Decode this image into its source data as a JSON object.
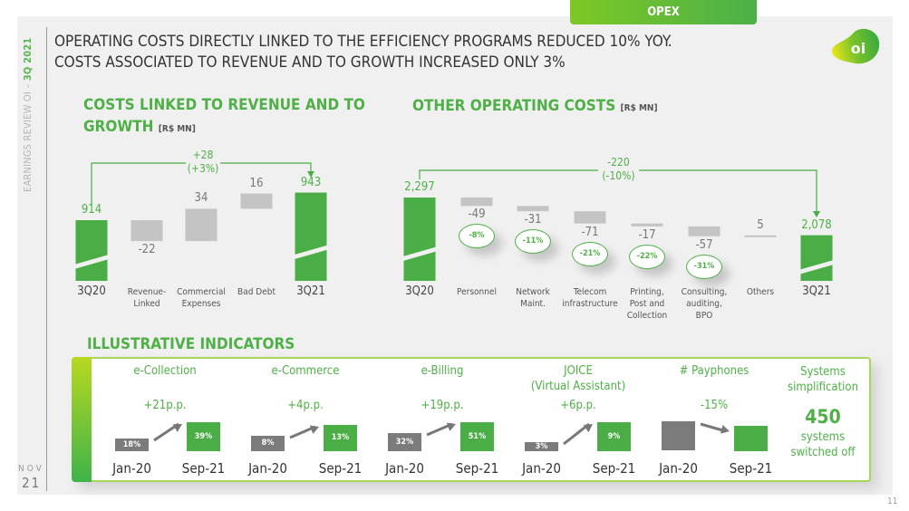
{
  "opex_tab": "OPEX",
  "sidebar": {
    "prefix": "EARNINGS REVIEW OI – ",
    "highlight": "3Q 2021",
    "month": "NOV",
    "year": "21"
  },
  "headline": [
    "OPERATING COSTS DIRECTLY LINKED TO THE EFFICIENCY PROGRAMS REDUCED 10% YOY.",
    "COSTS ASSOCIATED TO REVENUE AND TO GROWTH INCREASED ONLY 3%"
  ],
  "logo_text": "oi",
  "page_number": "11",
  "colors": {
    "green": "#4aad45",
    "gray_bar": "#c4c4c4",
    "dark_gray": "#7b7b7b"
  },
  "chart_data": [
    {
      "type": "bar",
      "subtype": "waterfall",
      "title_line1": "COSTS LINKED TO REVENUE AND TO",
      "title_line2": "GROWTH",
      "unit": "[R$ MN]",
      "categories": [
        "3Q20",
        "Revenue-Linked",
        "Commercial Expenses",
        "Bad Debt",
        "3Q21"
      ],
      "category_lines": [
        [
          "3Q20"
        ],
        [
          "Revenue-",
          "Linked"
        ],
        [
          "Commercial",
          "Expenses"
        ],
        [
          "Bad Debt"
        ],
        [
          "3Q21"
        ]
      ],
      "values": [
        914,
        -22,
        34,
        16,
        943
      ],
      "value_labels": [
        "914",
        "-22",
        "34",
        "16",
        "943"
      ],
      "kinds": [
        "total",
        "delta",
        "delta",
        "delta",
        "total"
      ],
      "change_label": [
        "+28",
        "(+3%)"
      ]
    },
    {
      "type": "bar",
      "subtype": "waterfall",
      "title": "OTHER OPERATING COSTS",
      "unit": "[R$ MN]",
      "categories": [
        "3Q20",
        "Personnel",
        "Network Maint.",
        "Telecom infrastructure",
        "Printing, Post and Collection",
        "Consulting, auditing, BPO",
        "Others",
        "3Q21"
      ],
      "category_lines": [
        [
          "3Q20"
        ],
        [
          "Personnel"
        ],
        [
          "Network",
          "Maint."
        ],
        [
          "Telecom",
          "infrastructure"
        ],
        [
          "Printing,",
          "Post and",
          "Collection"
        ],
        [
          "Consulting,",
          "auditing,",
          "BPO"
        ],
        [
          "Others"
        ],
        [
          "3Q21"
        ]
      ],
      "values": [
        2297,
        -49,
        -31,
        -71,
        -17,
        -57,
        5,
        2078
      ],
      "value_labels": [
        "2,297",
        "-49",
        "-31",
        "-71",
        "-17",
        "-57",
        "5",
        "2,078"
      ],
      "kinds": [
        "total",
        "delta",
        "delta",
        "delta",
        "delta",
        "delta",
        "delta",
        "total"
      ],
      "pct_change": [
        null,
        "-8%",
        "-11%",
        "-21%",
        "-22%",
        "-31%",
        null,
        null
      ],
      "change_label": [
        "-220",
        "(-10%)"
      ]
    },
    {
      "type": "bar",
      "title": "ILLUSTRATIVE INDICATORS",
      "groups": [
        {
          "title": [
            "e-Collection"
          ],
          "delta": "+21p.p.",
          "x": [
            "Jan-20",
            "Sep-21"
          ],
          "values": [
            18,
            39
          ],
          "labels": [
            "18%",
            "39%"
          ]
        },
        {
          "title": [
            "e-Commerce"
          ],
          "delta": "+4p.p.",
          "x": [
            "Jan-20",
            "Sep-21"
          ],
          "values": [
            8,
            13
          ],
          "labels": [
            "8%",
            "13%"
          ]
        },
        {
          "title": [
            "e-Billing"
          ],
          "delta": "+19p.p.",
          "x": [
            "Jan-20",
            "Sep-21"
          ],
          "values": [
            32,
            51
          ],
          "labels": [
            "32%",
            "51%"
          ]
        },
        {
          "title": [
            "JOICE",
            "(Virtual Assistant)"
          ],
          "delta": "+6p.p.",
          "x": [
            "Jan-20",
            "Sep-21"
          ],
          "values": [
            3,
            9
          ],
          "labels": [
            "3%",
            "9%"
          ]
        },
        {
          "title": [
            "# Payphones"
          ],
          "delta": "-15%",
          "x": [
            "Jan-20",
            "Sep-21"
          ],
          "values": [
            100,
            85
          ],
          "labels": [
            "",
            ""
          ]
        }
      ],
      "systems": {
        "title": [
          "Systems",
          "simplification"
        ],
        "number": "450",
        "caption": [
          "systems",
          "switched off"
        ]
      }
    }
  ]
}
